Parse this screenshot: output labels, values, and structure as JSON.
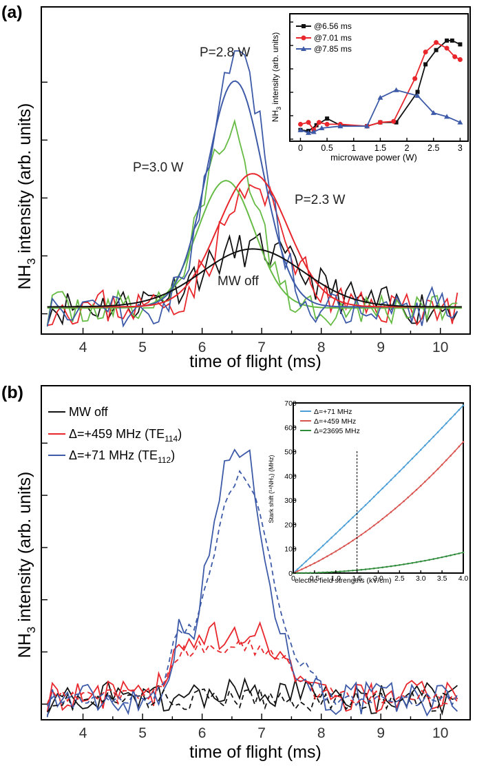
{
  "colors": {
    "black": "#111111",
    "red": "#e8262b",
    "blue": "#3d5aa8",
    "green": "#66bb44",
    "lightblue": "#4b9fd6",
    "lightred": "#d9534f",
    "darkgreen": "#2e8b3a"
  },
  "chart_data": [
    {
      "id": "a",
      "type": "line",
      "panel_label": "(a)",
      "xlabel": "time of flight (ms)",
      "ylabel_main": "NH",
      "ylabel_sub": "3",
      "ylabel_rest": " intensity (arb. units)",
      "xlim": [
        3.3,
        10.5
      ],
      "ylim": [
        -0.35,
        5.3
      ],
      "xticks": [
        4,
        5,
        6,
        7,
        8,
        9,
        10
      ],
      "xtick_labels": [
        "4",
        "5",
        "6",
        "7",
        "8",
        "9",
        "10"
      ],
      "yticks": [
        0,
        1,
        2,
        3,
        4
      ],
      "annotations": [
        "P=2.8 W",
        "P=3.0 W",
        "P=2.3 W",
        "MW off"
      ],
      "series": [
        {
          "color": "black",
          "peak": 6.8,
          "sigma": 0.85,
          "amp": 1.0,
          "base": 0.12,
          "noise": 0.32,
          "seed": 11
        },
        {
          "color": "red",
          "peak": 6.85,
          "sigma": 0.55,
          "amp": 2.0,
          "base": 0.12,
          "noise": 0.32,
          "seed": 23
        },
        {
          "color": "green",
          "peak": 6.45,
          "sigma": 0.45,
          "amp": 3.0,
          "base": 0.1,
          "noise": 0.3,
          "seed": 37
        },
        {
          "color": "green",
          "peak": 6.4,
          "sigma": 0.48,
          "amp": 2.2,
          "base": 0.1,
          "noise": 0.0,
          "seed": 0
        },
        {
          "color": "blue",
          "peak": 6.6,
          "sigma": 0.45,
          "amp": 4.4,
          "base": 0.12,
          "noise": 0.34,
          "seed": 51
        },
        {
          "color": "blue",
          "peak": 6.55,
          "sigma": 0.47,
          "amp": 3.9,
          "base": 0.12,
          "noise": 0.0,
          "seed": 0
        },
        {
          "color": "red",
          "peak": 6.85,
          "sigma": 0.58,
          "amp": 2.3,
          "base": 0.12,
          "noise": 0.0,
          "seed": 0
        },
        {
          "color": "black",
          "peak": 6.85,
          "sigma": 0.85,
          "amp": 1.0,
          "base": 0.12,
          "noise": 0.0,
          "seed": 0
        }
      ]
    },
    {
      "id": "a-inset",
      "type": "line",
      "xlabel": "microwave power (W)",
      "ylabel_main": "NH",
      "ylabel_sub": "3",
      "ylabel_rest": " intensity (arb. units)",
      "xlim": [
        -0.2,
        3.15
      ],
      "ylim": [
        0,
        1.05
      ],
      "xticks": [
        0,
        0.5,
        1,
        1.5,
        2,
        2.5,
        3
      ],
      "xtick_labels": [
        "0",
        "0.5",
        "1",
        "1.5",
        "2",
        "2.5",
        "3"
      ],
      "series": [
        {
          "name": "@6.56 ms",
          "color": "black",
          "marker": "square",
          "x": [
            0,
            0.15,
            0.3,
            0.5,
            0.75,
            1.25,
            1.5,
            1.8,
            2.2,
            2.35,
            2.55,
            2.75,
            2.85,
            3.0
          ],
          "y": [
            0.06,
            0.05,
            0.11,
            0.18,
            0.11,
            0.1,
            0.14,
            0.14,
            0.46,
            0.75,
            0.9,
            1.0,
            1.0,
            0.96
          ]
        },
        {
          "name": "@7.01 ms",
          "color": "red",
          "marker": "circle",
          "x": [
            0,
            0.15,
            0.25,
            0.35,
            0.5,
            0.75,
            1.25,
            1.5,
            1.75,
            2.15,
            2.35,
            2.55,
            2.75,
            2.9,
            3.0
          ],
          "y": [
            0.12,
            0.14,
            0.06,
            0.14,
            0.12,
            0.12,
            0.1,
            0.14,
            0.15,
            0.6,
            0.88,
            0.98,
            0.92,
            0.83,
            0.8
          ]
        },
        {
          "name": "@7.85 ms",
          "color": "blue",
          "marker": "triangle",
          "x": [
            0,
            0.15,
            0.25,
            0.4,
            0.75,
            1.25,
            1.5,
            1.8,
            2.2,
            2.5,
            2.75,
            3.0
          ],
          "y": [
            0.06,
            0.03,
            0.04,
            0.08,
            0.1,
            0.1,
            0.4,
            0.48,
            0.42,
            0.24,
            0.2,
            0.14
          ]
        }
      ]
    },
    {
      "id": "b",
      "type": "line",
      "panel_label": "(b)",
      "xlabel": "time of flight (ms)",
      "ylabel_main": "NH",
      "ylabel_sub": "3",
      "ylabel_rest": " intensity (arb. units)",
      "xlim": [
        3.3,
        10.5
      ],
      "ylim": [
        -0.3,
        6.1
      ],
      "xticks": [
        4,
        5,
        6,
        7,
        8,
        9,
        10
      ],
      "xtick_labels": [
        "4",
        "5",
        "6",
        "7",
        "8",
        "9",
        "10"
      ],
      "yticks": [
        0,
        1,
        2,
        3,
        4,
        5
      ],
      "series": [
        {
          "name": "MW off",
          "legend_main": "MW off",
          "legend_sub": "",
          "legend_tail": "",
          "color": "black",
          "dash": false,
          "peak": 6.5,
          "sigma": 1.0,
          "amp": 0.1,
          "base": 0.1,
          "noise": 0.32,
          "seed": 71
        },
        {
          "name": "Δ=+459 MHz (TE114)",
          "legend_main": "Δ=+459 MHz (TE",
          "legend_sub": "114",
          "legend_tail": ")",
          "color": "red",
          "dash": false,
          "plateau": [
            5.45,
            7.5
          ],
          "amp": 1.15,
          "base": 0.15,
          "noise": 0.3,
          "seed": 83,
          "flat_top": true
        },
        {
          "name": "Δ=+71 MHz (TE112)",
          "legend_main": "Δ=+71 MHz (TE",
          "legend_sub": "112",
          "legend_tail": ")",
          "color": "blue",
          "dash": false,
          "peak": 6.6,
          "sigma": 0.45,
          "amp": 4.9,
          "base": 0.1,
          "noise": 0.35,
          "seed": 97,
          "shoulder": true
        },
        {
          "color": "black",
          "dash": true,
          "peak": 6.5,
          "sigma": 1.0,
          "amp": 0.05,
          "base": 0.05,
          "noise": 0.2,
          "seed": 101
        },
        {
          "color": "red",
          "dash": true,
          "plateau": [
            5.45,
            7.5
          ],
          "amp": 0.95,
          "base": 0.15,
          "noise": 0.15,
          "seed": 113,
          "flat_top": true
        },
        {
          "color": "blue",
          "dash": true,
          "peak": 6.65,
          "sigma": 0.5,
          "amp": 4.3,
          "base": 0.08,
          "noise": 0.12,
          "seed": 127,
          "shoulder": true
        }
      ]
    },
    {
      "id": "b-inset",
      "type": "line",
      "xlabel": "electric field strengths (kV/cm)",
      "ylabel": "Stark shift (¹⁴NH₃) (MHz)",
      "xlim": [
        0,
        4.0
      ],
      "ylim": [
        0,
        700
      ],
      "xticks": [
        0,
        0.5,
        1,
        1.5,
        2,
        2.5,
        3,
        3.5,
        4.0
      ],
      "xtick_labels": [
        "0",
        "0.5",
        "1.0",
        "1.5",
        "2.0",
        "2.5",
        "3.0",
        "3.5",
        "4.0"
      ],
      "yticks": [
        0,
        100,
        200,
        300,
        400,
        500,
        600,
        700
      ],
      "ytick_labels": [
        "0",
        "100",
        "200",
        "300",
        "400",
        "500",
        "600",
        "700"
      ],
      "vline_x": 1.5,
      "series": [
        {
          "name": "Δ=+71 MHz",
          "color": "lightblue",
          "x_end": 4.0,
          "y_end": 690,
          "curvature": 0.08
        },
        {
          "name": "Δ=+459 MHz",
          "color": "lightred",
          "x_end": 4.0,
          "y_end": 540,
          "curvature": 0.45
        },
        {
          "name": "Δ=23695 MHz",
          "color": "darkgreen",
          "x_end": 4.0,
          "y_end": 85,
          "curvature": 1.0
        }
      ]
    }
  ]
}
